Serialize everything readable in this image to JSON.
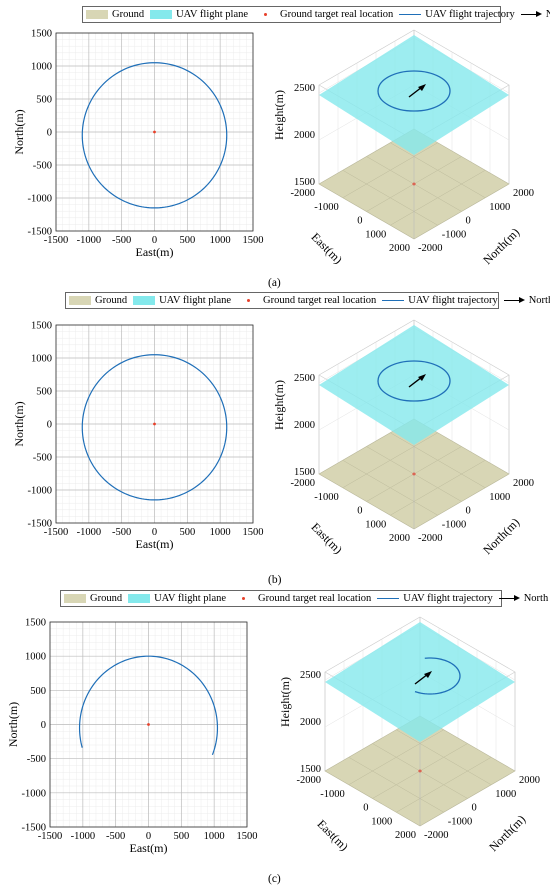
{
  "legend": {
    "ground": "Ground",
    "plane": "UAV flight plane",
    "target": "Ground target real location",
    "trajectory": "UAV flight trajectory",
    "north": "North"
  },
  "colors": {
    "ground": "#d8d6b5",
    "plane": "#84e9ec",
    "target": "#e8402a",
    "trajectory": "#1f6fb8",
    "arrow": "#000000"
  },
  "captions": [
    "(a)",
    "(b)",
    "(c)"
  ],
  "chart_data": [
    {
      "type": "line",
      "view": "2d",
      "xlabel": "East(m)",
      "ylabel": "North(m)",
      "xlim": [
        -1500,
        1500
      ],
      "ylim": [
        -1500,
        1500
      ],
      "xticks": [
        "-1500",
        "-1000",
        "-500",
        "0",
        "500",
        "1000",
        "1500"
      ],
      "yticks": [
        "1500",
        "1000",
        "500",
        "0",
        "-500",
        "-1000",
        "-1500"
      ],
      "grid": true,
      "trajectory": {
        "center_x": 0,
        "center_y": -50,
        "radius": 1100,
        "start_deg": 0,
        "end_deg": 360
      },
      "target": {
        "x": 0,
        "y": 0
      }
    },
    {
      "type": "line",
      "view": "3d",
      "zlabel": "Height(m)",
      "xlabel": "East(m)",
      "ylabel": "North(m)",
      "zticks": [
        "2500",
        "2000",
        "1500"
      ],
      "xticks": [
        "-2000",
        "-1000",
        "0",
        "1000",
        "2000"
      ],
      "yticks": [
        "2000",
        "1000",
        "0",
        "-1000",
        "-2000"
      ],
      "ground_height": 1500,
      "plane_height": 2400
    },
    {
      "type": "line",
      "view": "2d",
      "xlabel": "East(m)",
      "ylabel": "North(m)",
      "xlim": [
        -1500,
        1500
      ],
      "ylim": [
        -1500,
        1500
      ],
      "xticks": [
        "-1500",
        "-1000",
        "-500",
        "0",
        "500",
        "1000",
        "1500"
      ],
      "yticks": [
        "1500",
        "1000",
        "500",
        "0",
        "-500",
        "-1000",
        "-1500"
      ],
      "grid": true,
      "trajectory": {
        "center_x": 0,
        "center_y": -50,
        "radius": 1100,
        "start_deg": 0,
        "end_deg": 360
      },
      "target": {
        "x": 0,
        "y": 0
      }
    },
    {
      "type": "line",
      "view": "3d",
      "zlabel": "Height(m)",
      "xlabel": "East(m)",
      "ylabel": "North(m)",
      "zticks": [
        "2500",
        "2000",
        "1500"
      ],
      "xticks": [
        "-2000",
        "-1000",
        "0",
        "1000",
        "2000"
      ],
      "yticks": [
        "2000",
        "1000",
        "0",
        "-1000",
        "-2000"
      ],
      "ground_height": 1500,
      "plane_height": 2400
    },
    {
      "type": "line",
      "view": "2d",
      "xlabel": "East(m)",
      "ylabel": "North(m)",
      "xlim": [
        -1500,
        1500
      ],
      "ylim": [
        -1500,
        1500
      ],
      "xticks": [
        "-1500",
        "-1000",
        "-500",
        "0",
        "500",
        "1000",
        "1500"
      ],
      "yticks": [
        "1500",
        "1000",
        "500",
        "0",
        "-500",
        "-1000",
        "-1500"
      ],
      "grid": true,
      "trajectory": {
        "center_x": 0,
        "center_y": -50,
        "radius": 1050,
        "start_deg": -22,
        "end_deg": 196
      },
      "target": {
        "x": 0,
        "y": 0
      }
    },
    {
      "type": "line",
      "view": "3d",
      "zlabel": "Height(m)",
      "xlabel": "East(m)",
      "ylabel": "North(m)",
      "zticks": [
        "2500",
        "2000",
        "1500"
      ],
      "xticks": [
        "-2000",
        "-1000",
        "0",
        "1000",
        "2000"
      ],
      "yticks": [
        "2000",
        "1000",
        "0",
        "-1000",
        "-2000"
      ],
      "ground_height": 1500,
      "plane_height": 2400
    }
  ]
}
